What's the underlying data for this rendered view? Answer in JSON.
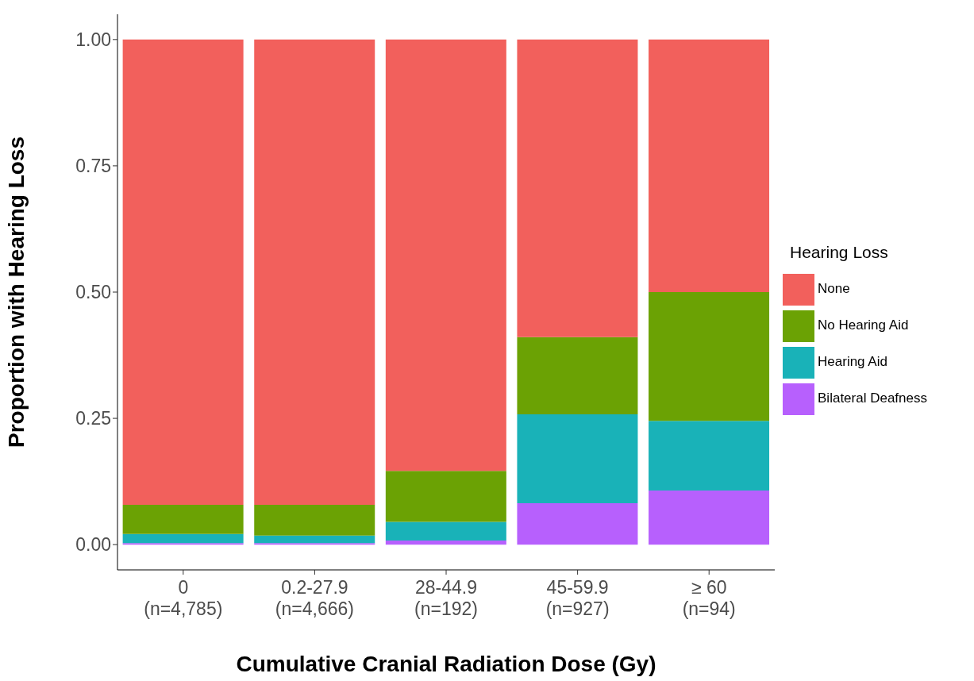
{
  "chart_data": {
    "type": "bar",
    "stacked": true,
    "xlabel": "Cumulative Cranial Radiation Dose (Gy)",
    "ylabel": "Proportion with Hearing Loss",
    "legend_title": "Hearing Loss",
    "legend": "right",
    "grid": false,
    "categories": [
      "0\n(n=4,785)",
      "0.2-27.9\n(n=4,666)",
      "28-44.9\n(n=192)",
      "45-59.9\n(n=927)",
      "≥ 60\n(n=94)"
    ],
    "ylim": [
      -0.05,
      1.05
    ],
    "yticks": [
      {
        "value": 0,
        "label": "0.00"
      },
      {
        "value": 0.25,
        "label": "0.25"
      },
      {
        "value": 0.5,
        "label": "0.50"
      },
      {
        "value": 0.75,
        "label": "0.75"
      },
      {
        "value": 1,
        "label": "1.00"
      }
    ],
    "series": [
      {
        "name": "Bilateral Deafness",
        "color": "#b760fd",
        "values": [
          0.003,
          0.003,
          0.008,
          0.082,
          0.107
        ]
      },
      {
        "name": "Hearing Aid",
        "color": "#19b2b8",
        "values": [
          0.018,
          0.015,
          0.037,
          0.176,
          0.138
        ]
      },
      {
        "name": "No Hearing Aid",
        "color": "#6ba204",
        "values": [
          0.058,
          0.061,
          0.101,
          0.153,
          0.255
        ]
      },
      {
        "name": "None",
        "color": "#f2605c",
        "values": [
          0.921,
          0.921,
          0.854,
          0.589,
          0.5
        ]
      }
    ]
  }
}
